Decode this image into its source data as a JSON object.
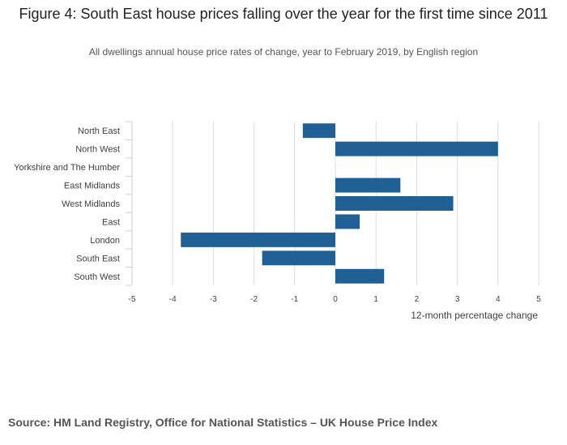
{
  "chart_data": {
    "type": "bar",
    "orientation": "horizontal",
    "title": "Figure 4: South East house prices falling over the year for the first time since 2011",
    "subtitle": "All dwellings annual house price rates of change, year to February 2019, by English region",
    "categories": [
      "North East",
      "North West",
      "Yorkshire and The Humber",
      "East Midlands",
      "West Midlands",
      "East",
      "London",
      "South East",
      "South West"
    ],
    "values": [
      -0.8,
      4.0,
      0.0,
      1.6,
      2.9,
      0.6,
      -3.8,
      -1.8,
      1.2
    ],
    "xlabel": "12-month percentage change",
    "ylabel": "",
    "xlim": [
      -5,
      5
    ],
    "xticks": [
      "-5",
      "-4",
      "-3",
      "-2",
      "-1",
      "0",
      "1",
      "2",
      "3",
      "4",
      "5"
    ],
    "grid": true,
    "bar_color": "#206095"
  },
  "source": "Source: HM Land Registry, Office for National Statistics – UK House Price Index"
}
